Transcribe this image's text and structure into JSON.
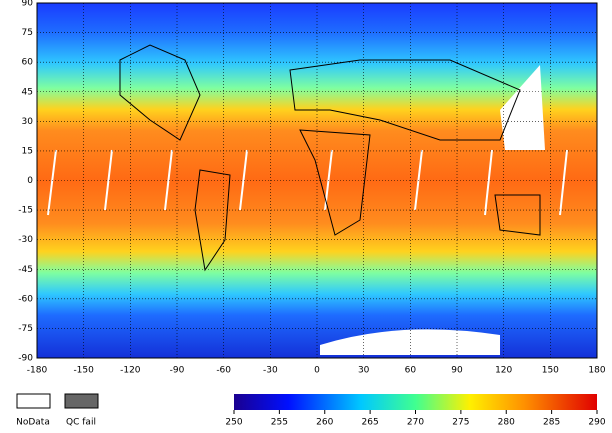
{
  "map": {
    "lat_ticks": [
      90,
      75,
      60,
      45,
      30,
      15,
      0,
      -15,
      -30,
      -45,
      -60,
      -75,
      -90
    ],
    "lon_ticks": [
      -180,
      -150,
      -120,
      -90,
      -60,
      -30,
      0,
      30,
      60,
      90,
      120,
      150,
      180
    ]
  },
  "legend": [
    "NoData",
    "QC fail"
  ],
  "colorbar": {
    "ticks": [
      250,
      255,
      260,
      265,
      270,
      275,
      280,
      285,
      290
    ]
  }
}
